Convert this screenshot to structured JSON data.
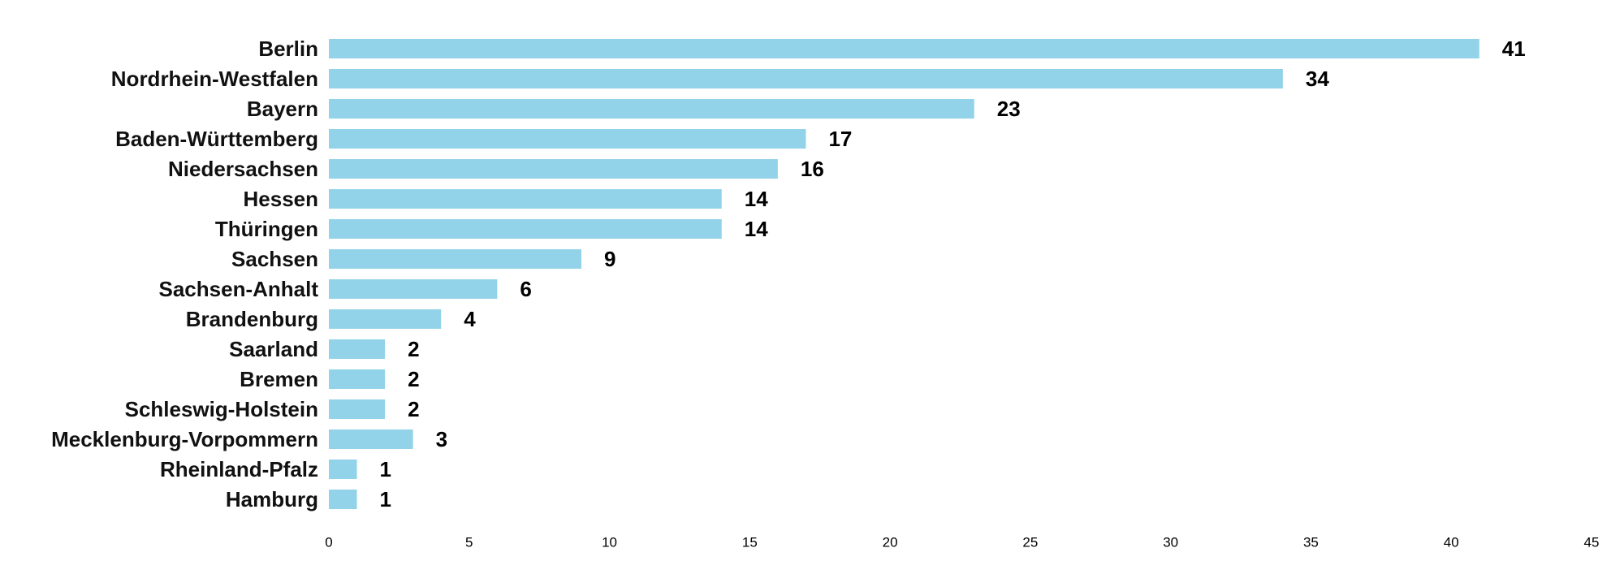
{
  "chart_data": {
    "type": "bar",
    "orientation": "horizontal",
    "title": "",
    "xlabel": "",
    "ylabel": "",
    "categories": [
      "Berlin",
      "Nordrhein-Westfalen",
      "Bayern",
      "Baden-Württemberg",
      "Niedersachsen",
      "Hessen",
      "Thüringen",
      "Sachsen",
      "Sachsen-Anhalt",
      "Brandenburg",
      "Saarland",
      "Bremen",
      "Schleswig-Holstein",
      "Mecklenburg-Vorpommern",
      "Rheinland-Pfalz",
      "Hamburg"
    ],
    "values": [
      41,
      34,
      23,
      17,
      16,
      14,
      14,
      9,
      6,
      4,
      2,
      2,
      2,
      3,
      1,
      1
    ],
    "xlim": [
      0,
      45
    ],
    "xticks": [
      0,
      5,
      10,
      15,
      20,
      25,
      30,
      35,
      40,
      45
    ],
    "bar_color": "#93d3e9",
    "grid": false,
    "legend": "none",
    "data_labels": true
  }
}
